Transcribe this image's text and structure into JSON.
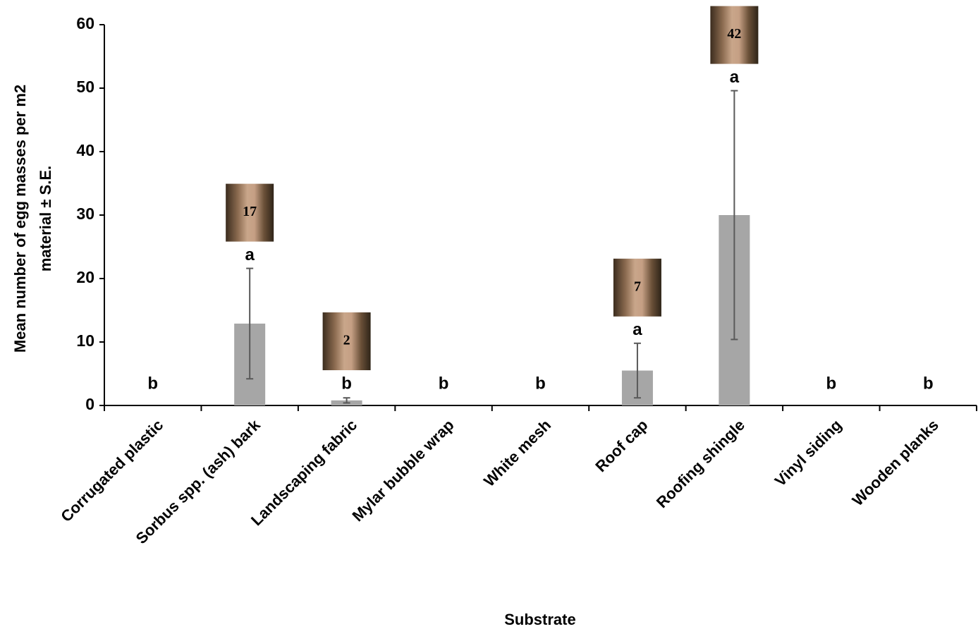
{
  "chart_data": {
    "type": "bar",
    "y_axis_label": [
      "Mean number of egg masses per m2",
      "material ± S.E."
    ],
    "x_axis_label": "Substrate",
    "categories": [
      "Corrugated plastic",
      "Sorbus spp. (ash) bark",
      "Landscaping fabric",
      "Mylar bubble wrap",
      "White mesh",
      "Roof cap",
      "Roofing shingle",
      "Vinyl siding",
      "Wooden planks"
    ],
    "values": [
      0,
      12.9,
      0.8,
      0,
      0,
      5.5,
      30,
      0,
      0
    ],
    "errors": [
      0,
      8.7,
      0.4,
      0,
      0,
      4.3,
      19.6,
      0,
      0
    ],
    "letters": [
      "b",
      "a",
      "b",
      "b",
      "b",
      "a",
      "a",
      "b",
      "b"
    ],
    "photo_counts": [
      null,
      17,
      2,
      null,
      null,
      7,
      42,
      null,
      null
    ],
    "color": "#a6a6a6",
    "error_color": "#595959",
    "ylim": [
      0,
      60
    ],
    "yticks": [
      0,
      10,
      20,
      30,
      40,
      50,
      60
    ]
  }
}
